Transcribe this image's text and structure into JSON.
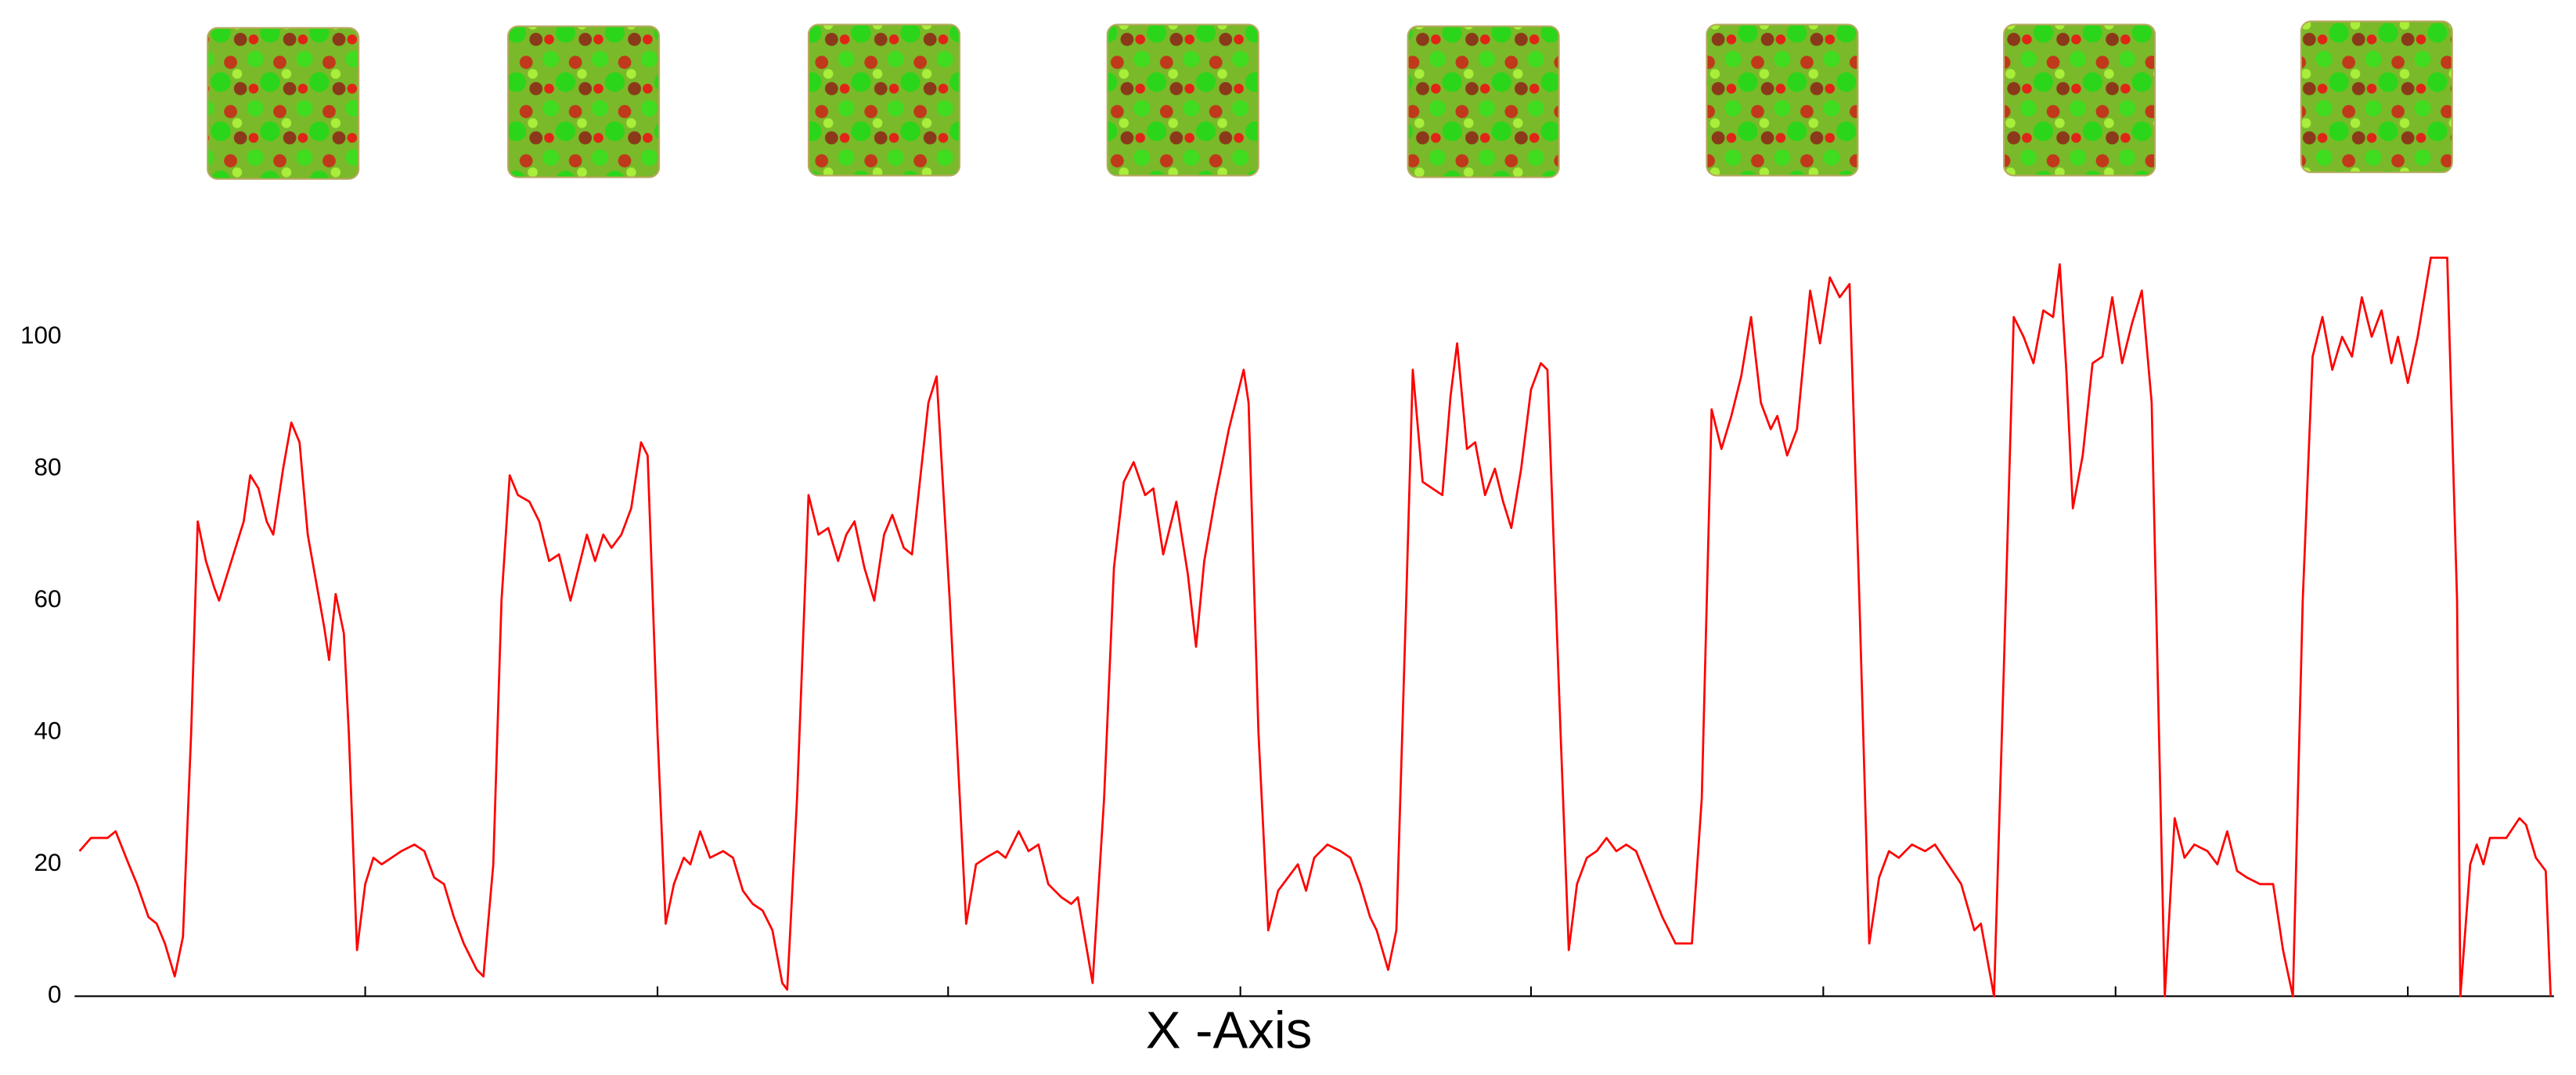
{
  "chart_data": {
    "type": "line",
    "x_label": "X -Axis",
    "x": [
      3,
      10,
      15,
      20,
      25,
      33,
      38,
      45,
      50,
      55,
      61,
      66,
      71,
      75,
      80,
      85,
      88,
      93,
      98,
      103,
      107,
      112,
      117,
      121,
      127,
      132,
      137,
      142,
      147,
      152,
      155,
      159,
      164,
      167,
      172,
      177,
      182,
      187,
      193,
      199,
      207,
      213,
      219,
      225,
      231,
      237,
      245,
      249,
      255,
      260,
      265,
      270,
      277,
      283,
      289,
      295,
      302,
      307,
      312,
      317,
      322,
      327,
      333,
      339,
      345,
      349,
      355,
      360,
      365,
      371,
      375,
      381,
      387,
      395,
      401,
      407,
      413,
      419,
      425,
      431,
      434,
      440,
      447,
      453,
      459,
      465,
      470,
      475,
      481,
      487,
      493,
      498,
      505,
      510,
      520,
      525,
      533,
      543,
      549,
      555,
      562,
      567,
      575,
      581,
      587,
      593,
      601,
      607,
      611,
      620,
      627,
      633,
      639,
      645,
      652,
      657,
      663,
      671,
      678,
      683,
      688,
      695,
      703,
      707,
      712,
      715,
      721,
      727,
      733,
      739,
      745,
      750,
      755,
      763,
      771,
      777,
      783,
      789,
      793,
      800,
      805,
      811,
      815,
      821,
      827,
      833,
      838,
      842,
      848,
      853,
      859,
      865,
      870,
      875,
      881,
      887,
      893,
      897,
      905,
      910,
      915,
      921,
      927,
      933,
      939,
      945,
      951,
      959,
      967,
      975,
      985,
      991,
      997,
      1003,
      1009,
      1015,
      1021,
      1027,
      1033,
      1037,
      1043,
      1049,
      1057,
      1063,
      1069,
      1075,
      1081,
      1087,
      1093,
      1099,
      1105,
      1111,
      1119,
      1127,
      1133,
      1141,
      1149,
      1157,
      1161,
      1169,
      1175,
      1181,
      1187,
      1193,
      1199,
      1205,
      1209,
      1213,
      1217,
      1223,
      1229,
      1235,
      1241,
      1247,
      1253,
      1259,
      1265,
      1273,
      1279,
      1285,
      1291,
      1299,
      1305,
      1311,
      1317,
      1323,
      1331,
      1339,
      1345,
      1351,
      1357,
      1363,
      1369,
      1375,
      1381,
      1387,
      1393,
      1399,
      1405,
      1411,
      1415,
      1421,
      1427,
      1431,
      1435,
      1445,
      1451,
      1453,
      1459,
      1463,
      1467,
      1471,
      1481,
      1489,
      1493,
      1499,
      1505,
      1508
    ],
    "values": [
      22,
      24,
      24,
      24,
      25,
      20,
      17,
      12,
      11,
      8,
      3,
      9,
      40,
      72,
      66,
      62,
      60,
      64,
      68,
      72,
      79,
      77,
      72,
      70,
      80,
      87,
      84,
      70,
      63,
      56,
      51,
      61,
      55,
      40,
      7,
      17,
      21,
      20,
      21,
      22,
      23,
      22,
      18,
      17,
      12,
      8,
      4,
      3,
      20,
      60,
      79,
      76,
      75,
      72,
      66,
      67,
      60,
      65,
      70,
      66,
      70,
      68,
      70,
      74,
      84,
      82,
      40,
      11,
      17,
      21,
      20,
      25,
      21,
      22,
      21,
      16,
      14,
      13,
      10,
      2,
      1,
      30,
      76,
      70,
      71,
      66,
      70,
      72,
      65,
      60,
      70,
      73,
      68,
      67,
      90,
      94,
      60,
      11,
      20,
      21,
      22,
      21,
      25,
      22,
      23,
      17,
      15,
      14,
      15,
      2,
      30,
      65,
      78,
      81,
      76,
      77,
      67,
      75,
      64,
      53,
      66,
      76,
      86,
      90,
      95,
      90,
      40,
      10,
      16,
      18,
      20,
      16,
      21,
      23,
      22,
      21,
      17,
      12,
      10,
      4,
      10,
      60,
      95,
      78,
      77,
      76,
      91,
      99,
      83,
      84,
      76,
      80,
      75,
      71,
      80,
      92,
      96,
      95,
      40,
      7,
      17,
      21,
      22,
      24,
      22,
      23,
      22,
      17,
      12,
      8,
      8,
      30,
      89,
      83,
      88,
      94,
      103,
      90,
      86,
      88,
      82,
      86,
      107,
      99,
      109,
      106,
      108,
      60,
      8,
      18,
      22,
      21,
      23,
      22,
      23,
      20,
      17,
      10,
      11,
      0,
      50,
      103,
      100,
      96,
      104,
      103,
      111,
      95,
      74,
      82,
      96,
      97,
      106,
      96,
      102,
      107,
      90,
      0,
      27,
      21,
      23,
      22,
      20,
      25,
      19,
      18,
      17,
      17,
      7,
      0,
      60,
      97,
      103,
      95,
      100,
      97,
      106,
      100,
      104,
      96,
      100,
      93,
      100,
      106,
      112,
      112,
      60,
      0,
      20,
      23,
      20,
      24,
      24,
      27,
      26,
      21,
      19,
      0
    ],
    "color": "#ff0000",
    "xlim": [
      0,
      1510
    ],
    "ylim": [
      0,
      112
    ],
    "yticks": [
      0,
      20,
      40,
      60,
      80,
      100
    ]
  }
}
